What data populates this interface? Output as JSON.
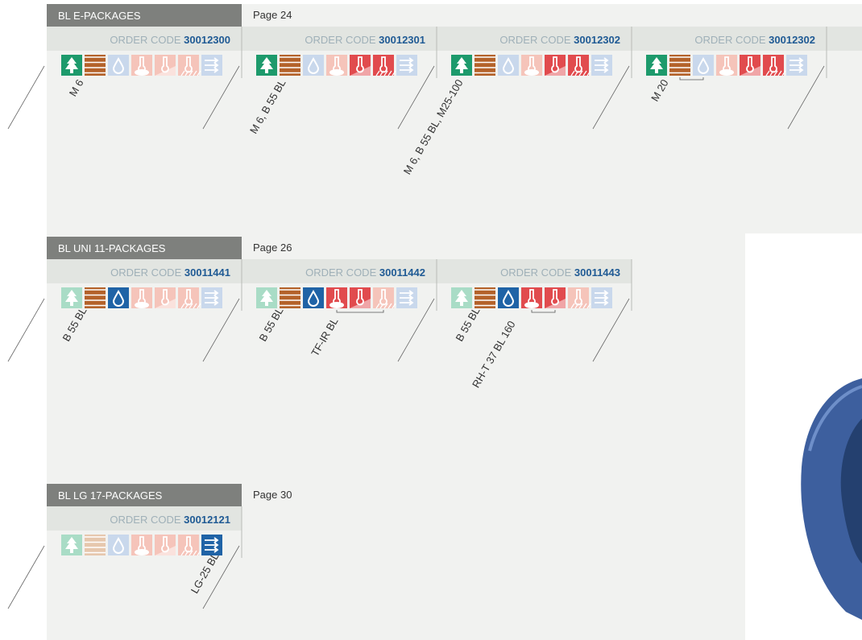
{
  "sections": [
    {
      "title": "BL E-PACKAGES",
      "page": "Page 24",
      "packages": [
        {
          "order_code_label": "ORDER CODE",
          "order_code": "30012300",
          "devices": [
            "M 6"
          ]
        },
        {
          "order_code_label": "ORDER CODE",
          "order_code": "30012301",
          "devices": [
            "M 6, B 55 BL"
          ]
        },
        {
          "order_code_label": "ORDER CODE",
          "order_code": "30012302",
          "devices": [
            "M 6, B 55 BL, M25-100"
          ]
        },
        {
          "order_code_label": "ORDER CODE",
          "order_code": "30012302",
          "devices": [
            "M 20"
          ]
        }
      ]
    },
    {
      "title": "BL UNI 11-PACKAGES",
      "page": "Page 26",
      "packages": [
        {
          "order_code_label": "ORDER CODE",
          "order_code": "30011441",
          "devices": [
            "B 55 BL"
          ]
        },
        {
          "order_code_label": "ORDER CODE",
          "order_code": "30011442",
          "devices": [
            "B 55 BL",
            "TF-IR BL"
          ]
        },
        {
          "order_code_label": "ORDER CODE",
          "order_code": "30011443",
          "devices": [
            "B 55 BL",
            "RH-T 37 BL 160"
          ]
        }
      ]
    },
    {
      "title": "BL LG 17-PACKAGES",
      "page": "Page 30",
      "packages": [
        {
          "order_code_label": "ORDER CODE",
          "order_code": "30012121",
          "devices": [
            "LG-25 BL"
          ]
        }
      ]
    }
  ]
}
